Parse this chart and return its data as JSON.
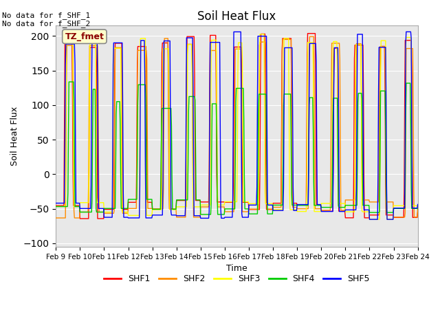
{
  "title": "Soil Heat Flux",
  "ylabel": "Soil Heat Flux",
  "xlabel": "Time",
  "ylim": [
    -105,
    215
  ],
  "annotation_text": "No data for f_SHF_1\nNo data for f_SHF_2",
  "legend_label": "TZ_fmet",
  "series_colors": {
    "SHF1": "#ff0000",
    "SHF2": "#ff8c00",
    "SHF3": "#ffff00",
    "SHF4": "#00cc00",
    "SHF5": "#0000ff"
  },
  "background_color": "#e8e8e8",
  "figure_color": "#ffffff",
  "date_labels": [
    "Feb 9",
    "Feb 10",
    "Feb 11",
    "Feb 12",
    "Feb 13",
    "Feb 14",
    "Feb 15",
    "Feb 16",
    "Feb 17",
    "Feb 18",
    "Feb 19",
    "Feb 20",
    "Feb 21",
    "Feb 22",
    "Feb 23",
    "Feb 24"
  ],
  "yticks": [
    -100,
    -50,
    0,
    50,
    100,
    150,
    200
  ],
  "pts_per_day": 48,
  "n_days": 16
}
